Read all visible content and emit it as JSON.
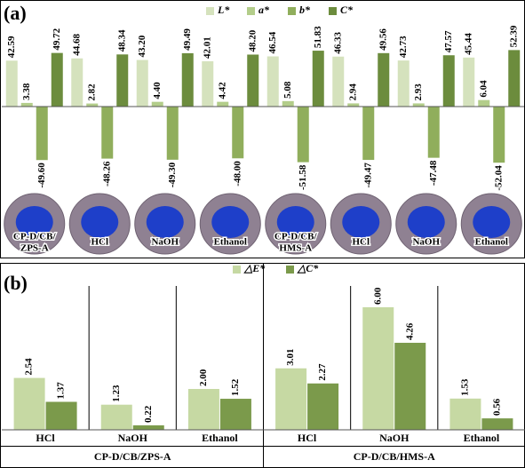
{
  "chart_data": [
    {
      "type": "bar",
      "panel_label": "(a)",
      "categories": [
        "CP-D/CB/\nZPS-A",
        "HCl",
        "NaOH",
        "Ethanol",
        "CP-D/CB/\nHMS-A",
        "HCl",
        "NaOH",
        "Ethanol"
      ],
      "series": [
        {
          "name": "L*",
          "color": "#d5e2bd",
          "values": [
            42.59,
            44.68,
            43.2,
            42.01,
            46.54,
            46.33,
            42.73,
            45.44
          ],
          "value_labels": [
            "42.59",
            "44.68",
            "43.20",
            "42.01",
            "46.54",
            "46.33",
            "42.73",
            "45.44"
          ]
        },
        {
          "name": "a*",
          "color": "#b3cd8a",
          "values": [
            3.38,
            2.82,
            4.4,
            4.42,
            5.08,
            2.94,
            2.93,
            6.04
          ],
          "value_labels": [
            "3.38",
            "2.82",
            "4.40",
            "4.42",
            "5.08",
            "2.94",
            "2.93",
            "6.04"
          ]
        },
        {
          "name": "b*",
          "color": "#90ae5c",
          "values": [
            -49.6,
            -48.26,
            -49.3,
            -48.0,
            -51.58,
            -49.47,
            -47.48,
            -52.04
          ],
          "value_labels": [
            "-49.60",
            "-48.26",
            "-49.30",
            "-48.00",
            "-51.58",
            "-49.47",
            "-47.48",
            "-52.04"
          ]
        },
        {
          "name": "C*",
          "color": "#6c8c3d",
          "values": [
            49.72,
            48.34,
            49.49,
            48.2,
            51.83,
            49.56,
            47.57,
            52.39
          ],
          "value_labels": [
            "49.72",
            "48.34",
            "49.49",
            "48.20",
            "51.83",
            "49.56",
            "47.57",
            "52.39"
          ]
        }
      ],
      "ylim": [
        -70,
        70
      ]
    },
    {
      "type": "bar",
      "panel_label": "(b)",
      "categories": [
        "HCl",
        "NaOH",
        "Ethanol",
        "HCl",
        "NaOH",
        "Ethanol"
      ],
      "groups": [
        "CP-D/CB/ZPS-A",
        "CP-D/CB/HMS-A"
      ],
      "series": [
        {
          "name": "△E*",
          "color": "#c6d9a3",
          "values": [
            2.54,
            1.23,
            2.0,
            3.01,
            6.0,
            1.53
          ],
          "value_labels": [
            "2.54",
            "1.23",
            "2.00",
            "3.01",
            "6.00",
            "1.53"
          ]
        },
        {
          "name": "△C*",
          "color": "#7b9a4b",
          "values": [
            1.37,
            0.22,
            1.52,
            2.27,
            4.26,
            0.56
          ],
          "value_labels": [
            "1.37",
            "0.22",
            "1.52",
            "2.27",
            "4.26",
            "0.56"
          ]
        }
      ],
      "ylim": [
        0,
        8
      ]
    }
  ]
}
